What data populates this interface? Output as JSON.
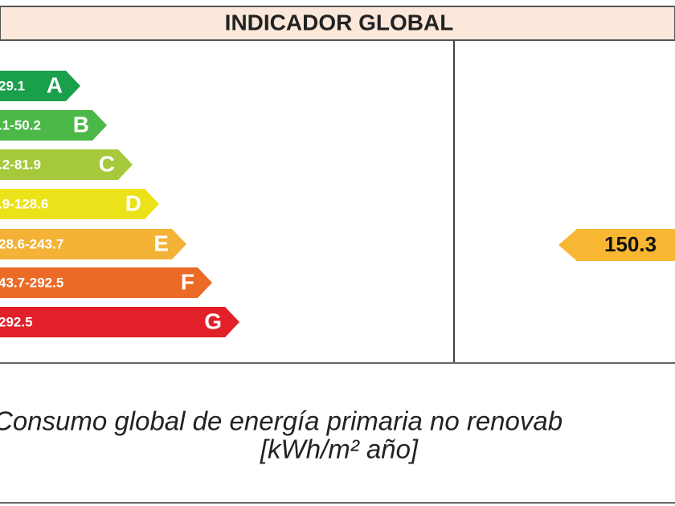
{
  "header": {
    "title": "INDICADOR GLOBAL"
  },
  "scale": {
    "rows": [
      {
        "range": "29.1",
        "letter": "A",
        "color": "#1a9f4a"
      },
      {
        "range": ".1-50.2",
        "letter": "B",
        "color": "#4cb848"
      },
      {
        "range": ".2-81.9",
        "letter": "C",
        "color": "#a5c93b"
      },
      {
        "range": ".9-128.6",
        "letter": "D",
        "color": "#ece21a"
      },
      {
        "range": "28.6-243.7",
        "letter": "E",
        "color": "#f4b236"
      },
      {
        "range": "43.7-292.5",
        "letter": "F",
        "color": "#ea6a26"
      },
      {
        "range": "292.5",
        "letter": "G",
        "color": "#e1202a"
      }
    ]
  },
  "indicator": {
    "value": "150.3",
    "color": "#f8b732"
  },
  "footer": {
    "lines": [
      "Consumo global de energía primaria no renovab",
      "[kWh/m² año]"
    ]
  }
}
